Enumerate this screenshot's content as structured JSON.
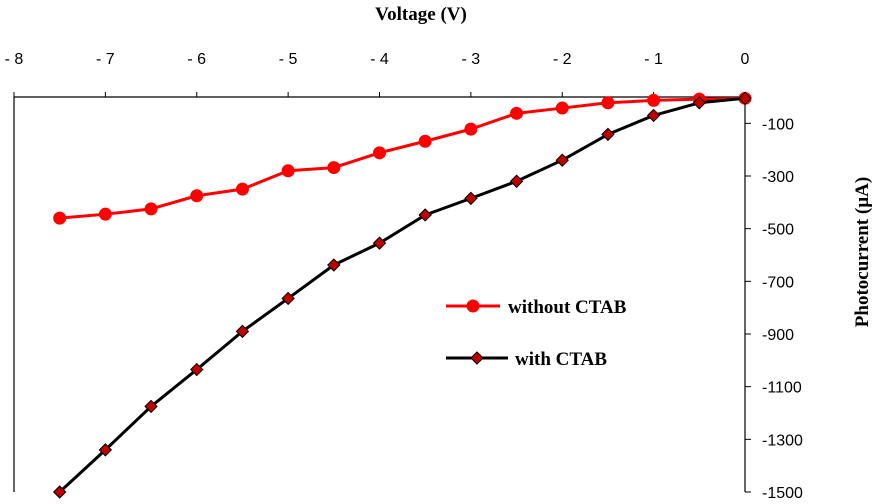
{
  "chart_data": {
    "type": "line",
    "title": "",
    "xlabel": "Voltage (V)",
    "ylabel": "Photocurrent (µA)",
    "xlim": [
      -8,
      0
    ],
    "ylim": [
      -1500,
      0
    ],
    "x_ticks": [
      -8,
      -7,
      -6,
      -5,
      -4,
      -3,
      -2,
      -1,
      0
    ],
    "y_ticks": [
      -100,
      -300,
      -500,
      -700,
      -900,
      -1100,
      -1300,
      -1500
    ],
    "x_axis_position": "top",
    "y_axis_position": "right",
    "grid": false,
    "legend_position": "center-right",
    "series": [
      {
        "name": "without CTAB",
        "color": "#ff0000",
        "marker": "circle",
        "x": [
          -7.5,
          -7.0,
          -6.5,
          -6.0,
          -5.5,
          -5.0,
          -4.5,
          -4.0,
          -3.5,
          -3.0,
          -2.5,
          -2.0,
          -1.5,
          -1.0,
          -0.5,
          0.0
        ],
        "y": [
          -460,
          -445,
          -425,
          -375,
          -350,
          -280,
          -268,
          -212,
          -168,
          -122,
          -62,
          -42,
          -22,
          -13,
          -8,
          -5
        ]
      },
      {
        "name": "with CTAB",
        "color": "#000000",
        "marker_color": "#c00000",
        "marker": "diamond",
        "x": [
          -7.5,
          -7.0,
          -6.5,
          -6.0,
          -5.5,
          -5.0,
          -4.5,
          -4.0,
          -3.5,
          -3.0,
          -2.5,
          -2.0,
          -1.5,
          -1.0,
          -0.5,
          0.0
        ],
        "y": [
          -1500,
          -1340,
          -1175,
          -1035,
          -890,
          -765,
          -638,
          -555,
          -448,
          -385,
          -320,
          -240,
          -142,
          -70,
          -22,
          -5
        ]
      }
    ]
  }
}
